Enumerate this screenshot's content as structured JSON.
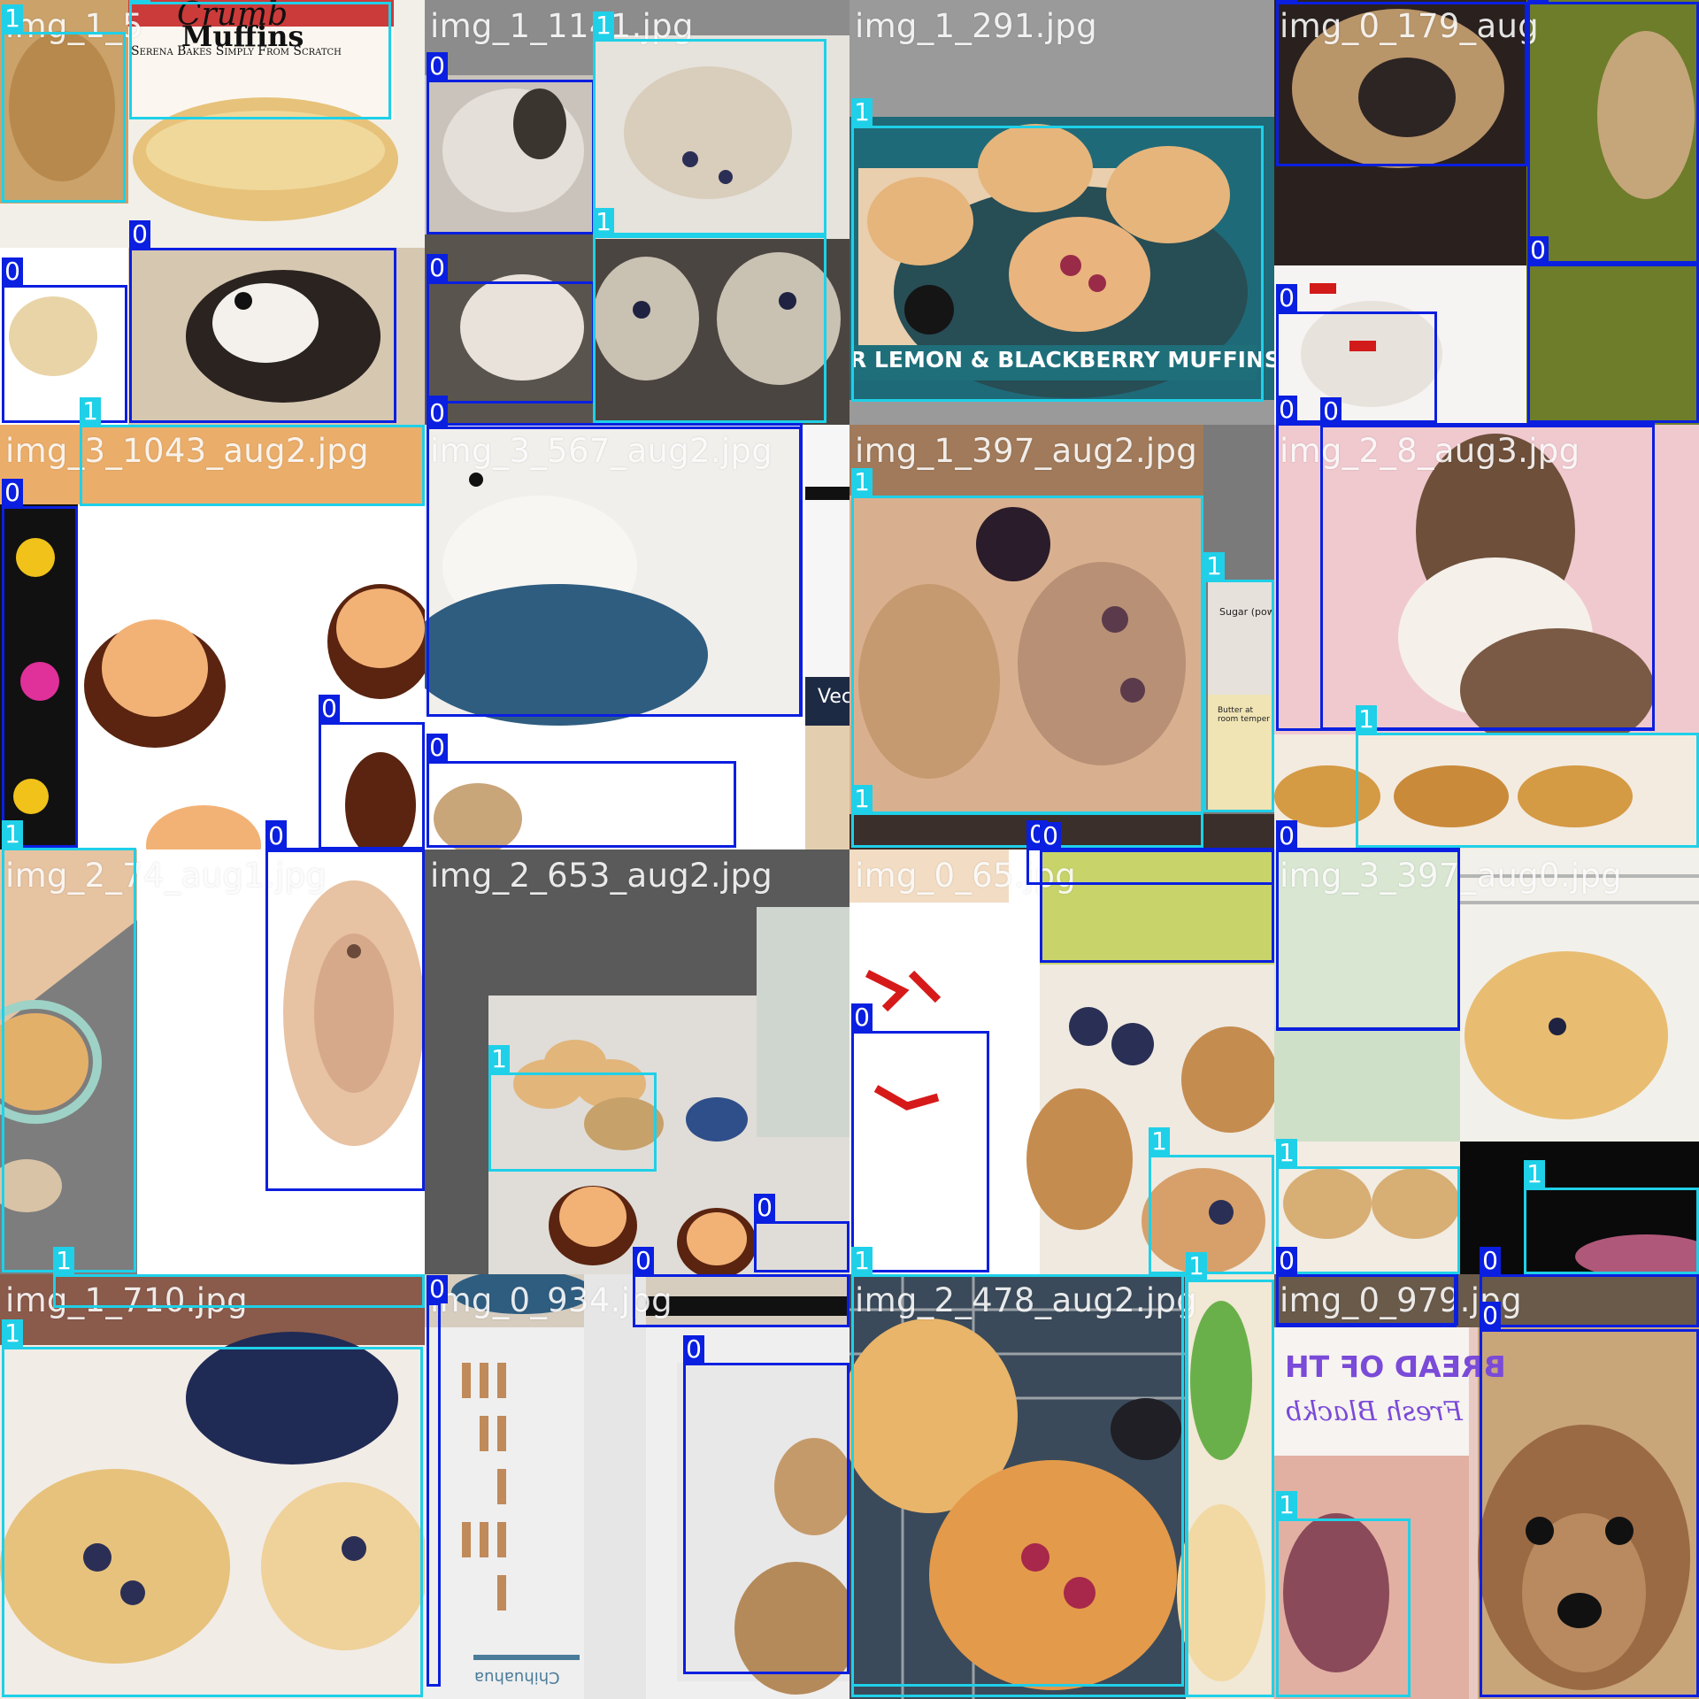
{
  "class_colors": {
    "0": "#0a1fe0",
    "1": "#1fd0e8"
  },
  "tiles": [
    {
      "name": "img_1_5",
      "scene": "bakery sign and muffin pie, chihuahua on cushion",
      "bg": [
        "#e9ddc9",
        "#b9854a",
        "#f2efe8"
      ]
    },
    {
      "name": "img_1_1141.jpg",
      "scene": "chihuahuas and blueberry muffins",
      "bg": [
        "#8c8c8c",
        "#d8d2ca",
        "#4a4541"
      ]
    },
    {
      "name": "img_1_291.jpg",
      "scene": "lemon blackberry muffins on plate",
      "bg": [
        "#9a9a9a",
        "#1f6a78",
        "#e7b57a"
      ]
    },
    {
      "name": "img_0_179_aug",
      "scene": "pug face and grass",
      "bg": [
        "#3a2f2a",
        "#6d7d2a",
        "#f2f0ee"
      ]
    },
    {
      "name": "img_3_1043_aug2.jpg",
      "scene": "cartoon dog faces",
      "bg": [
        "#ffffff",
        "#d77d3a",
        "#111111"
      ]
    },
    {
      "name": "img_3_567_aug2.jpg",
      "scene": "white puppy on blue blanket",
      "bg": [
        "#f3f1ee",
        "#2f5d80",
        "#d7c8b5"
      ]
    },
    {
      "name": "img_1_397_aug2.jpg",
      "scene": "blackberry muffin halves",
      "bg": [
        "#7a7a7a",
        "#d9b08f",
        "#5b3b3b"
      ]
    },
    {
      "name": "img_2_8_aug3.jpg",
      "scene": "chihuahua on pink and muffins",
      "bg": [
        "#f0c9cf",
        "#8a6a4e",
        "#d49a44"
      ]
    },
    {
      "name": "img_2_74_aug1.jpg",
      "scene": "muffins and blurred chihuahua face",
      "bg": [
        "#ffffff",
        "#7d7d7d",
        "#e6c3a1"
      ]
    },
    {
      "name": "img_2_653_aug2.jpg",
      "scene": "muffins on counter and cartoon dogs",
      "bg": [
        "#5a5a5a",
        "#d7d2cb",
        "#c8a06a"
      ]
    },
    {
      "name": "img_0_65.jpg",
      "scene": "blueberry muffins and red bows",
      "bg": [
        "#ffffff",
        "#6f8a2a",
        "#b58a55"
      ]
    },
    {
      "name": "img_3_397_aug0.jpg",
      "scene": "muffin on rack and green wall",
      "bg": [
        "#cfe0c8",
        "#f2f0ea",
        "#e0b46d"
      ]
    },
    {
      "name": "img_1_710.jpg",
      "scene": "blueberry muffins close up",
      "bg": [
        "#f2ece6",
        "#1f2a55",
        "#e6c27c"
      ]
    },
    {
      "name": "img_0_934.jpg",
      "scene": "chihuahua size chart and cartoon dog",
      "bg": [
        "#efefef",
        "#b58a5a",
        "#222222"
      ]
    },
    {
      "name": "img_2_478_aug2.jpg",
      "scene": "raspberry muffins on rack with mint",
      "bg": [
        "#3a4a5a",
        "#e39a4a",
        "#6ab04a"
      ]
    },
    {
      "name": "img_0_979.jpg",
      "scene": "bread label and chihuahua face",
      "bg": [
        "#e8c9c3",
        "#8b5a3b",
        "#f2efea"
      ]
    }
  ],
  "overlays": {
    "crumb_title": "Crumb",
    "crumb_subtitle": "Muffins",
    "crumb_tagline": "Serena Bakes Simply From Scratch",
    "lemon_banner": "R LEMON & BLACKBERRY MUFFINS",
    "sugar_label": "Sugar (powd",
    "butter_label": "Butter at room temper",
    "vec_label": "Vec",
    "bread_label": "BREAD OF TH",
    "fresh_label": "Fresh Blackb",
    "chart_title": "Chihuahua"
  },
  "boxes": [
    {
      "tile": 0,
      "cls": "1"
    },
    {
      "tile": 0,
      "cls": "1"
    },
    {
      "tile": 0,
      "cls": "0"
    },
    {
      "tile": 0,
      "cls": "0"
    },
    {
      "tile": 0,
      "cls": "1"
    },
    {
      "tile": 1,
      "cls": "0"
    },
    {
      "tile": 1,
      "cls": "1"
    },
    {
      "tile": 1,
      "cls": "0"
    },
    {
      "tile": 1,
      "cls": "1"
    },
    {
      "tile": 1,
      "cls": "0"
    },
    {
      "tile": 2,
      "cls": "1"
    },
    {
      "tile": 3,
      "cls": "0"
    },
    {
      "tile": 3,
      "cls": "0"
    },
    {
      "tile": 3,
      "cls": "0"
    },
    {
      "tile": 3,
      "cls": "0"
    },
    {
      "tile": 3,
      "cls": "0"
    },
    {
      "tile": 4,
      "cls": "0"
    },
    {
      "tile": 4,
      "cls": "0"
    },
    {
      "tile": 4,
      "cls": "0"
    },
    {
      "tile": 4,
      "cls": "1"
    },
    {
      "tile": 5,
      "cls": "0"
    },
    {
      "tile": 5,
      "cls": "0"
    },
    {
      "tile": 6,
      "cls": "1"
    },
    {
      "tile": 6,
      "cls": "1"
    },
    {
      "tile": 6,
      "cls": "1"
    },
    {
      "tile": 6,
      "cls": "0"
    },
    {
      "tile": 7,
      "cls": "0"
    },
    {
      "tile": 7,
      "cls": "1"
    },
    {
      "tile": 7,
      "cls": "0"
    },
    {
      "tile": 8,
      "cls": "1"
    },
    {
      "tile": 8,
      "cls": "0"
    },
    {
      "tile": 8,
      "cls": "1"
    },
    {
      "tile": 9,
      "cls": "1"
    },
    {
      "tile": 9,
      "cls": "0"
    },
    {
      "tile": 9,
      "cls": "0"
    },
    {
      "tile": 10,
      "cls": "0"
    },
    {
      "tile": 10,
      "cls": "0"
    },
    {
      "tile": 10,
      "cls": "1"
    },
    {
      "tile": 10,
      "cls": "1"
    },
    {
      "tile": 11,
      "cls": "0"
    },
    {
      "tile": 11,
      "cls": "1"
    },
    {
      "tile": 11,
      "cls": "1"
    },
    {
      "tile": 11,
      "cls": "0"
    },
    {
      "tile": 11,
      "cls": "0"
    },
    {
      "tile": 12,
      "cls": "1"
    },
    {
      "tile": 12,
      "cls": "1"
    },
    {
      "tile": 13,
      "cls": "0"
    },
    {
      "tile": 13,
      "cls": "0"
    },
    {
      "tile": 14,
      "cls": "1"
    },
    {
      "tile": 14,
      "cls": "1"
    },
    {
      "tile": 15,
      "cls": "0"
    },
    {
      "tile": 15,
      "cls": "0"
    },
    {
      "tile": 15,
      "cls": "1"
    }
  ]
}
